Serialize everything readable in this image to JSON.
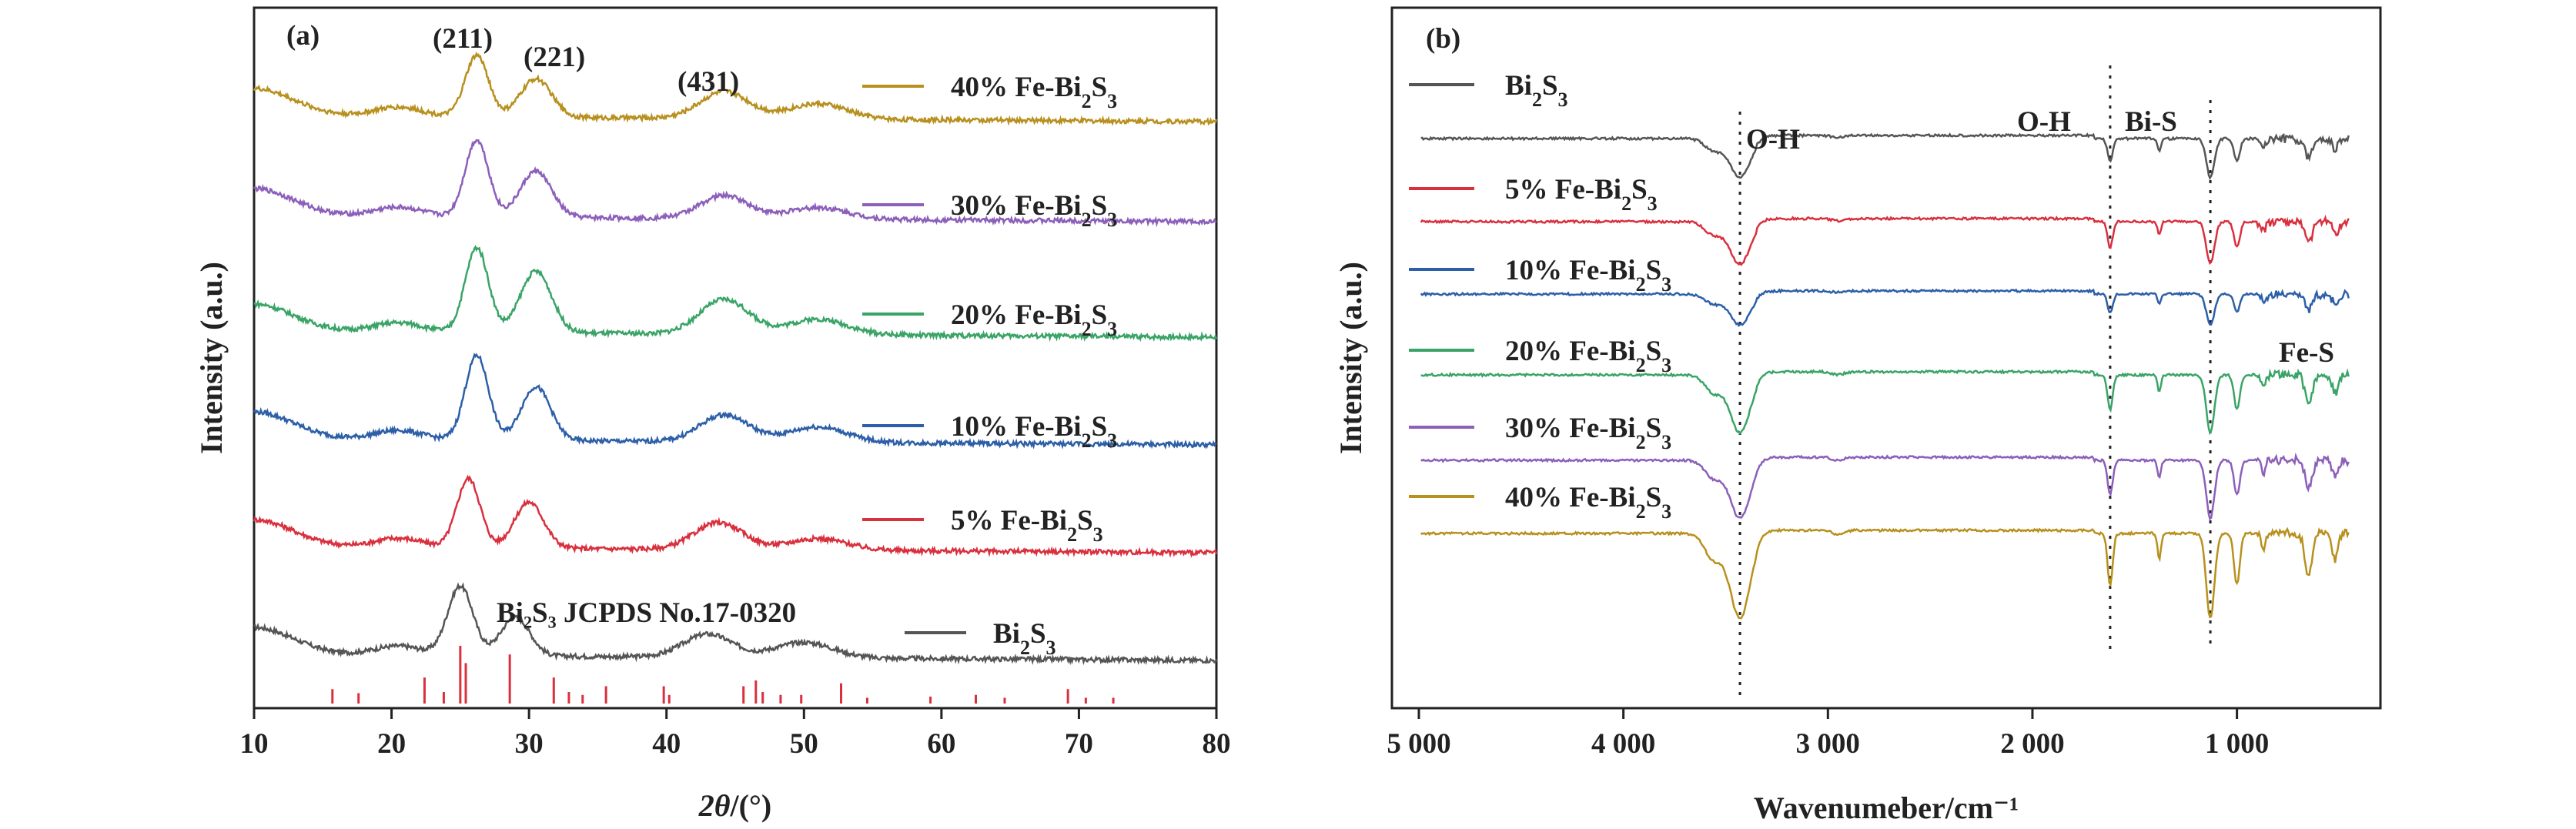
{
  "figure": {
    "panels": [
      "(a)",
      "(b)"
    ]
  },
  "chart_data": [
    {
      "type": "line",
      "panel_label": "(a)",
      "xlabel_italic": "2θ",
      "xlabel_rest": "/(°)",
      "ylabel": "Intensity (a.u.)",
      "xlim": [
        10,
        80
      ],
      "xticks": [
        10,
        20,
        30,
        40,
        50,
        60,
        70,
        80
      ],
      "annotations": [
        "(211)",
        "(221)",
        "(431)"
      ],
      "reference_label": "Bi₂S₃ JCPDS No.17-0320",
      "reference_peaks": [
        {
          "x": 15.7,
          "h": 0.25
        },
        {
          "x": 17.6,
          "h": 0.18
        },
        {
          "x": 22.4,
          "h": 0.45
        },
        {
          "x": 23.8,
          "h": 0.2
        },
        {
          "x": 25.0,
          "h": 1.0
        },
        {
          "x": 25.4,
          "h": 0.7
        },
        {
          "x": 28.6,
          "h": 0.85
        },
        {
          "x": 31.8,
          "h": 0.45
        },
        {
          "x": 32.9,
          "h": 0.2
        },
        {
          "x": 33.9,
          "h": 0.15
        },
        {
          "x": 35.6,
          "h": 0.3
        },
        {
          "x": 39.8,
          "h": 0.3
        },
        {
          "x": 40.2,
          "h": 0.15
        },
        {
          "x": 45.6,
          "h": 0.3
        },
        {
          "x": 46.5,
          "h": 0.4
        },
        {
          "x": 47.0,
          "h": 0.2
        },
        {
          "x": 48.3,
          "h": 0.15
        },
        {
          "x": 49.8,
          "h": 0.15
        },
        {
          "x": 52.7,
          "h": 0.35
        },
        {
          "x": 54.6,
          "h": 0.1
        },
        {
          "x": 59.2,
          "h": 0.12
        },
        {
          "x": 62.5,
          "h": 0.15
        },
        {
          "x": 64.6,
          "h": 0.1
        },
        {
          "x": 69.2,
          "h": 0.25
        },
        {
          "x": 70.5,
          "h": 0.1
        },
        {
          "x": 72.5,
          "h": 0.1
        }
      ],
      "series": [
        {
          "name": "Bi₂S₃",
          "color": "#555555",
          "baseline": 0.5,
          "peaks": [
            [
              25,
              0.9,
              1.3
            ],
            [
              29,
              0.5,
              1.5
            ],
            [
              43,
              0.3,
              2.5
            ],
            [
              50,
              0.2,
              3
            ]
          ]
        },
        {
          "name": "5% Fe-Bi₂S₃",
          "color": "#d9303e",
          "baseline": 1.9,
          "peaks": [
            [
              25.6,
              0.9,
              1.2
            ],
            [
              30,
              0.6,
              1.5
            ],
            [
              43.8,
              0.35,
              2.5
            ],
            [
              51,
              0.15,
              3
            ]
          ]
        },
        {
          "name": "10% Fe-Bi₂S₃",
          "color": "#2d5fa8",
          "baseline": 3.3,
          "peaks": [
            [
              26.2,
              1.1,
              1.2
            ],
            [
              30.5,
              0.7,
              1.5
            ],
            [
              44.2,
              0.35,
              2.5
            ],
            [
              51,
              0.2,
              3
            ]
          ]
        },
        {
          "name": "20% Fe-Bi₂S₃",
          "color": "#3aa467",
          "baseline": 4.7,
          "peaks": [
            [
              26.2,
              1.1,
              1.2
            ],
            [
              30.5,
              0.8,
              1.6
            ],
            [
              44.2,
              0.45,
              2.5
            ],
            [
              51,
              0.2,
              3
            ]
          ]
        },
        {
          "name": "30% Fe-Bi₂S₃",
          "color": "#8c5fba",
          "baseline": 6.2,
          "peaks": [
            [
              26.2,
              1.0,
              1.2
            ],
            [
              30.5,
              0.6,
              1.6
            ],
            [
              44.2,
              0.3,
              2.5
            ],
            [
              51,
              0.15,
              3
            ]
          ]
        },
        {
          "name": "40% Fe-Bi₂S₃",
          "color": "#b8901e",
          "baseline": 7.5,
          "peaks": [
            [
              26.2,
              0.8,
              1.2
            ],
            [
              30.5,
              0.5,
              1.6
            ],
            [
              44.2,
              0.35,
              2.5
            ],
            [
              51,
              0.2,
              3
            ]
          ]
        }
      ]
    },
    {
      "type": "line",
      "panel_label": "(b)",
      "xlabel": "Wavenumeber/cm⁻¹",
      "ylabel": "Intensity (a.u.)",
      "xlim": [
        5000,
        400
      ],
      "xticks": [
        5000,
        4000,
        3000,
        2000,
        1000
      ],
      "xtick_labels": [
        "5 000",
        "4 000",
        "3 000",
        "2 000",
        "1 000"
      ],
      "annotations": [
        "O-H",
        "O-H",
        "Bi-S",
        "Fe-S"
      ],
      "dotted_lines": [
        3430,
        1620,
        1130
      ],
      "series": [
        {
          "name": "Bi₂S₃",
          "color": "#555555",
          "offset": 0.0
        },
        {
          "name": "5% Fe-Bi₂S₃",
          "color": "#d9303e",
          "offset": 1.0
        },
        {
          "name": "10% Fe-Bi₂S₃",
          "color": "#2d5fa8",
          "offset": 2.0
        },
        {
          "name": "20% Fe-Bi₂S₃",
          "color": "#3aa467",
          "offset": 3.0
        },
        {
          "name": "30% Fe-Bi₂S₃",
          "color": "#8c5fba",
          "offset": 4.0
        },
        {
          "name": "40% Fe-Bi₂S₃",
          "color": "#b8901e",
          "offset": 5.0
        }
      ]
    }
  ]
}
